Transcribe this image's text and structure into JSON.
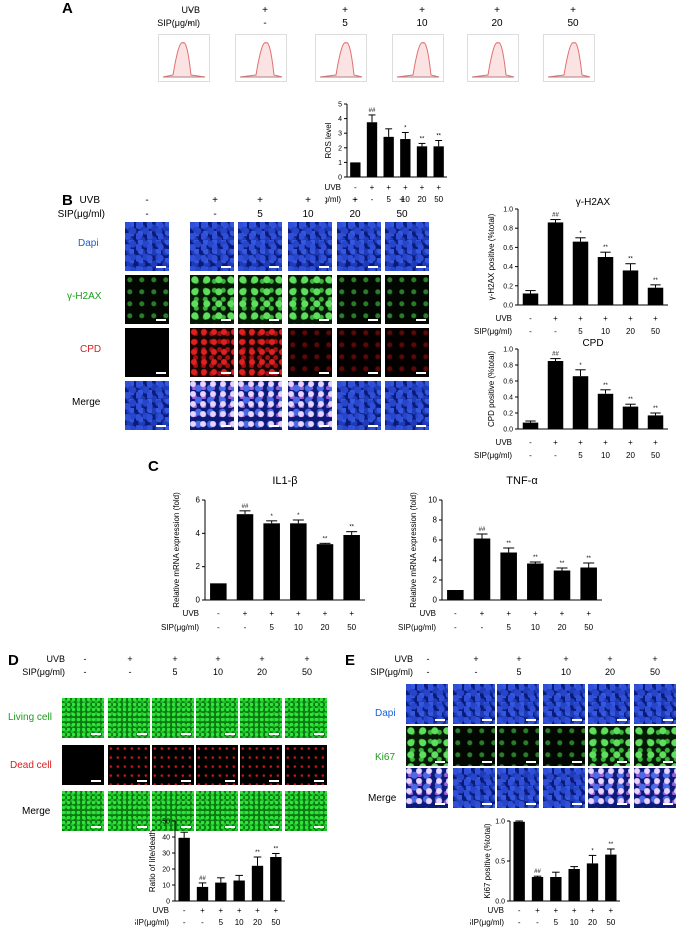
{
  "panels": {
    "A": "A",
    "B": "B",
    "C": "C",
    "D": "D",
    "E": "E"
  },
  "labels": {
    "uvb": "UVB",
    "sip": "SIP(μg/ml)",
    "dapi": "Dapi",
    "h2ax": "γ-H2AX",
    "cpd": "CPD",
    "merge": "Merge",
    "living": "Living cell",
    "dead": "Dead cell",
    "ki67": "Ki67"
  },
  "conditions": {
    "uvb": [
      "-",
      "+",
      "+",
      "+",
      "+",
      "+"
    ],
    "sip": [
      "-",
      "-",
      "5",
      "10",
      "20",
      "50"
    ]
  },
  "colors": {
    "dapi": "#1a5fd6",
    "green": "#1a9e1a",
    "red": "#d62020",
    "bar": "#000000"
  },
  "chart_data": [
    {
      "id": "ros",
      "type": "bar",
      "ylabel": "ROS level",
      "ylim": [
        0,
        5
      ],
      "yticks": [
        "0",
        "1",
        "2",
        "3",
        "4",
        "5"
      ],
      "values": [
        1,
        3.75,
        2.75,
        2.6,
        2.1,
        2.1
      ],
      "errors": [
        0,
        0.5,
        0.55,
        0.45,
        0.2,
        0.4
      ],
      "sig": [
        "",
        "##",
        "",
        "*",
        "**",
        "**"
      ]
    },
    {
      "id": "h2ax",
      "type": "bar",
      "title": "γ-H2AX",
      "ylabel": "γ-H2AX positive (%total)",
      "ylim": [
        0,
        1.0
      ],
      "yticks": [
        "0.0",
        "0.2",
        "0.4",
        "0.6",
        "0.8",
        "1.0"
      ],
      "values": [
        0.12,
        0.86,
        0.66,
        0.5,
        0.36,
        0.18
      ],
      "errors": [
        0.03,
        0.03,
        0.04,
        0.05,
        0.07,
        0.03
      ],
      "sig": [
        "",
        "##",
        "*",
        "**",
        "**",
        "**"
      ]
    },
    {
      "id": "cpd",
      "type": "bar",
      "title": "CPD",
      "ylabel": "CPD positive (%total)",
      "ylim": [
        0,
        1.0
      ],
      "yticks": [
        "0.0",
        "0.2",
        "0.4",
        "0.6",
        "0.8",
        "1.0"
      ],
      "values": [
        0.08,
        0.85,
        0.66,
        0.44,
        0.28,
        0.17
      ],
      "errors": [
        0.02,
        0.03,
        0.08,
        0.05,
        0.03,
        0.03
      ],
      "sig": [
        "",
        "##",
        "*",
        "**",
        "**",
        "**"
      ]
    },
    {
      "id": "il1b",
      "type": "bar",
      "title": "IL1-β",
      "ylabel": "Relative mRNA expression (fold)",
      "ylim": [
        0,
        6
      ],
      "yticks": [
        "0",
        "2",
        "4",
        "6"
      ],
      "values": [
        1,
        5.15,
        4.6,
        4.6,
        3.35,
        3.9
      ],
      "errors": [
        0,
        0.2,
        0.15,
        0.2,
        0.05,
        0.2
      ],
      "sig": [
        "",
        "##",
        "*",
        "*",
        "**",
        "**"
      ]
    },
    {
      "id": "tnfa",
      "type": "bar",
      "title": "TNF-α",
      "ylabel": "Relative mRNA expression (fold)",
      "ylim": [
        0,
        10
      ],
      "yticks": [
        "0",
        "2",
        "4",
        "6",
        "8",
        "10"
      ],
      "values": [
        1,
        6.15,
        4.75,
        3.65,
        2.95,
        3.25
      ],
      "errors": [
        0,
        0.45,
        0.45,
        0.15,
        0.25,
        0.45
      ],
      "sig": [
        "",
        "##",
        "**",
        "**",
        "**",
        "**"
      ]
    },
    {
      "id": "livedeath",
      "type": "bar",
      "ylabel": "Ratio of life/death",
      "ylim": [
        0,
        50
      ],
      "yticks": [
        "0",
        "10",
        "20",
        "30",
        "40",
        "50"
      ],
      "values": [
        39.5,
        8.8,
        11.5,
        12.8,
        22,
        27.5
      ],
      "errors": [
        3.5,
        2.5,
        3,
        3.2,
        5.5,
        2.2
      ],
      "sig": [
        "",
        "##",
        "",
        "",
        "**",
        "**"
      ]
    },
    {
      "id": "ki67",
      "type": "bar",
      "ylabel": "Ki67 positive (%total)",
      "ylim": [
        0,
        1.0
      ],
      "yticks": [
        "0.0",
        "0.5",
        "1.0"
      ],
      "values": [
        0.99,
        0.3,
        0.3,
        0.4,
        0.47,
        0.58
      ],
      "errors": [
        0.01,
        0.01,
        0.06,
        0.03,
        0.1,
        0.07
      ],
      "sig": [
        "",
        "##",
        "",
        "",
        "*",
        "**"
      ]
    }
  ]
}
